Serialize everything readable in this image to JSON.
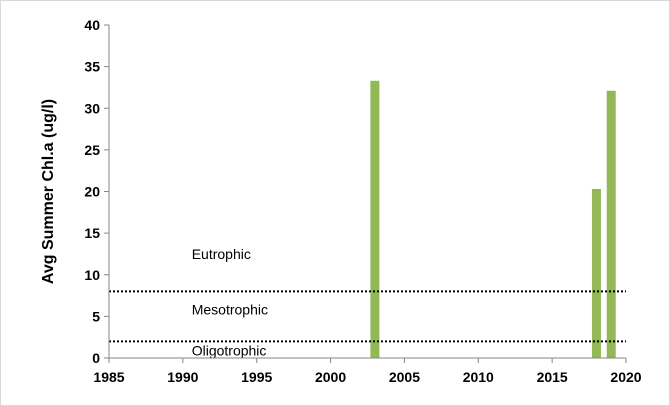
{
  "chart_data": {
    "type": "bar",
    "title": "",
    "xlabel": "",
    "ylabel": "Avg Summer Chl.a  (ug/l)",
    "xlim": [
      1985,
      2020
    ],
    "ylim": [
      0,
      40
    ],
    "xticks": [
      1985,
      1990,
      1995,
      2000,
      2005,
      2010,
      2015,
      2020
    ],
    "yticks": [
      0,
      5,
      10,
      15,
      20,
      25,
      30,
      35,
      40
    ],
    "grid": false,
    "bar_color": "#92b955",
    "series": [
      {
        "x": [
          2003,
          2018,
          2019
        ],
        "values": [
          33.3,
          20.3,
          32.1
        ]
      }
    ],
    "reference_lines": [
      {
        "y": 8,
        "style": "dotted"
      },
      {
        "y": 2,
        "style": "dotted"
      }
    ],
    "annotations": [
      {
        "text": "Eutrophic",
        "x": 1990.6,
        "y": 11.9
      },
      {
        "text": "Mesotrophic",
        "x": 1990.6,
        "y": 5.2
      },
      {
        "text": "Oligotrophic",
        "x": 1990.6,
        "y": 0.3
      }
    ]
  }
}
